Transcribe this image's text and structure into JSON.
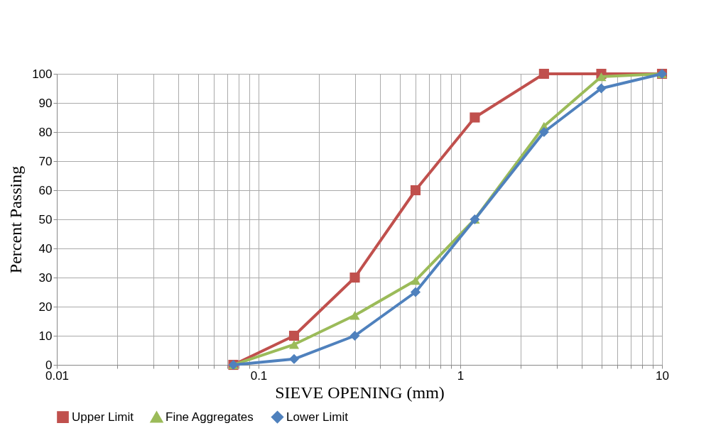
{
  "chart_data": {
    "type": "line",
    "xlabel": "SIEVE OPENING (mm)",
    "ylabel": "Percent  Passing",
    "log": "x",
    "grid": true,
    "legend": "bottom",
    "xlim": [
      0.01,
      10
    ],
    "xticks": [
      0.01,
      {
        "value": 0.02,
        "label": null
      },
      {
        "value": 0.03,
        "label": null
      },
      {
        "value": 0.04,
        "label": null
      },
      {
        "value": 0.05,
        "label": null
      },
      {
        "value": 0.06,
        "label": null
      },
      {
        "value": 0.07,
        "label": null
      },
      {
        "value": 0.08,
        "label": null
      },
      {
        "value": 0.09,
        "label": null
      },
      0.1,
      {
        "value": 0.2,
        "label": null
      },
      {
        "value": 0.3,
        "label": null
      },
      {
        "value": 0.4,
        "label": null
      },
      {
        "value": 0.5,
        "label": null
      },
      {
        "value": 0.6,
        "label": null
      },
      {
        "value": 0.7,
        "label": null
      },
      {
        "value": 0.8,
        "label": null
      },
      {
        "value": 0.9,
        "label": null
      },
      1,
      {
        "value": 2,
        "label": null
      },
      {
        "value": 3,
        "label": null
      },
      {
        "value": 4,
        "label": null
      },
      {
        "value": 5,
        "label": null
      },
      {
        "value": 6,
        "label": null
      },
      {
        "value": 7,
        "label": null
      },
      {
        "value": 8,
        "label": null
      },
      {
        "value": 9,
        "label": null
      },
      10
    ],
    "ylim": [
      0,
      100
    ],
    "yticks": [
      0,
      10,
      20,
      30,
      40,
      50,
      60,
      70,
      80,
      90,
      100
    ],
    "x": [
      0.075,
      0.15,
      0.3,
      0.6,
      1.18,
      2.6,
      5,
      10
    ],
    "series": [
      {
        "name": "Upper Limit",
        "color": "#c0504d",
        "marker": "square",
        "values": [
          0,
          10,
          30,
          60,
          85,
          100,
          100,
          100
        ]
      },
      {
        "name": "Fine Aggregates",
        "color": "#9bbb59",
        "marker": "triangle",
        "values": [
          0,
          7,
          17,
          29,
          50,
          82,
          99,
          100
        ]
      },
      {
        "name": "Lower Limit",
        "color": "#4f81bd",
        "marker": "diamond",
        "values": [
          0,
          2,
          10,
          25,
          50,
          80,
          95,
          100
        ]
      }
    ]
  }
}
